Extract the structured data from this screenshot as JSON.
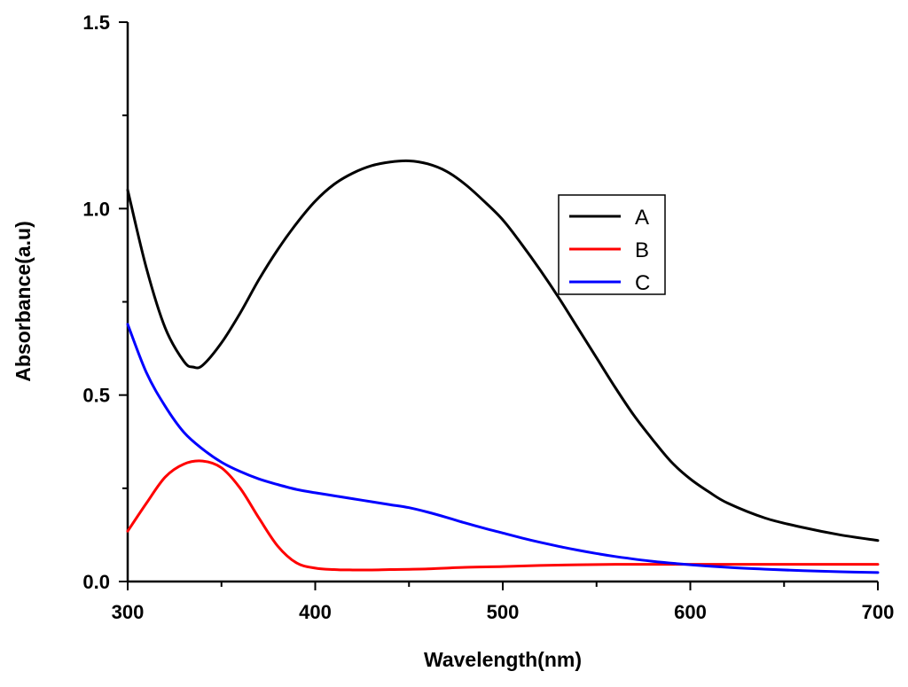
{
  "chart_data": {
    "type": "line",
    "title": "",
    "xlabel": "Wavelength(nm)",
    "ylabel": "Absorbance(a.u)",
    "xlim": [
      300,
      700
    ],
    "ylim": [
      0.0,
      1.5
    ],
    "x_ticks": [
      300,
      400,
      500,
      600,
      700
    ],
    "x_tick_labels": [
      "300",
      "400",
      "500",
      "600",
      "700"
    ],
    "y_ticks": [
      0.0,
      0.5,
      1.0,
      1.5
    ],
    "y_tick_labels": [
      "0.0",
      "0.5",
      "1.0",
      "1.5"
    ],
    "grid": false,
    "legend_position": "upper-right-center",
    "series": [
      {
        "name": "A",
        "color": "#000000",
        "x": [
          300,
          310,
          320,
          330,
          335,
          340,
          350,
          360,
          370,
          380,
          390,
          400,
          410,
          420,
          430,
          440,
          450,
          460,
          470,
          480,
          490,
          500,
          510,
          520,
          530,
          540,
          550,
          560,
          570,
          580,
          590,
          600,
          610,
          620,
          640,
          660,
          680,
          700
        ],
        "values": [
          1.05,
          0.84,
          0.68,
          0.59,
          0.575,
          0.58,
          0.64,
          0.72,
          0.81,
          0.89,
          0.96,
          1.02,
          1.065,
          1.095,
          1.115,
          1.125,
          1.128,
          1.12,
          1.1,
          1.065,
          1.02,
          0.97,
          0.905,
          0.835,
          0.76,
          0.68,
          0.6,
          0.52,
          0.445,
          0.38,
          0.32,
          0.275,
          0.24,
          0.21,
          0.17,
          0.145,
          0.125,
          0.11
        ]
      },
      {
        "name": "B",
        "color": "#ff0000",
        "x": [
          300,
          310,
          320,
          330,
          340,
          350,
          360,
          370,
          380,
          390,
          400,
          410,
          420,
          430,
          440,
          460,
          480,
          500,
          520,
          540,
          560,
          580,
          600,
          620,
          650,
          700
        ],
        "values": [
          0.135,
          0.21,
          0.28,
          0.315,
          0.323,
          0.305,
          0.25,
          0.17,
          0.095,
          0.05,
          0.036,
          0.032,
          0.031,
          0.031,
          0.032,
          0.034,
          0.038,
          0.04,
          0.043,
          0.045,
          0.046,
          0.046,
          0.046,
          0.046,
          0.046,
          0.046
        ]
      },
      {
        "name": "C",
        "color": "#0000ff",
        "x": [
          300,
          310,
          320,
          330,
          340,
          350,
          360,
          370,
          380,
          390,
          400,
          410,
          420,
          430,
          440,
          450,
          460,
          470,
          480,
          490,
          500,
          510,
          520,
          530,
          540,
          550,
          560,
          580,
          600,
          620,
          640,
          660,
          680,
          700
        ],
        "values": [
          0.69,
          0.56,
          0.47,
          0.4,
          0.355,
          0.32,
          0.295,
          0.275,
          0.26,
          0.247,
          0.238,
          0.23,
          0.222,
          0.214,
          0.206,
          0.198,
          0.186,
          0.172,
          0.157,
          0.143,
          0.13,
          0.117,
          0.105,
          0.094,
          0.084,
          0.075,
          0.067,
          0.054,
          0.045,
          0.038,
          0.033,
          0.029,
          0.026,
          0.024
        ]
      }
    ]
  }
}
